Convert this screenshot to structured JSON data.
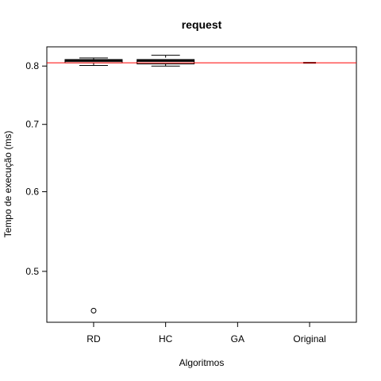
{
  "chart_data": {
    "type": "box",
    "title": "request",
    "xlabel": "Algoritmos",
    "ylabel": "Tempo de execução (ms)",
    "scale": "log",
    "ylim": [
      0.445,
      0.836
    ],
    "yticks": [
      0.5,
      0.6,
      0.7,
      0.8
    ],
    "ytick_labels": [
      "0.5",
      "0.6",
      "0.7",
      "0.8"
    ],
    "categories": [
      "RD",
      "HC",
      "GA",
      "Original"
    ],
    "boxes": [
      {
        "name": "RD",
        "whisker_low": 0.801,
        "q1": 0.806,
        "median": 0.81,
        "q3": 0.812,
        "whisker_high": 0.815,
        "outliers": [
          0.457
        ]
      },
      {
        "name": "HC",
        "whisker_low": 0.8,
        "q1": 0.804,
        "median": 0.81,
        "q3": 0.812,
        "whisker_high": 0.82,
        "outliers": []
      },
      {
        "name": "GA",
        "whisker_low": null,
        "q1": null,
        "median": null,
        "q3": null,
        "whisker_high": null,
        "outliers": []
      },
      {
        "name": "Original",
        "whisker_low": 0.806,
        "q1": 0.806,
        "median": 0.806,
        "q3": 0.806,
        "whisker_high": 0.806,
        "outliers": []
      }
    ],
    "reference_line": {
      "value": 0.806,
      "color": "#ff0000"
    }
  }
}
